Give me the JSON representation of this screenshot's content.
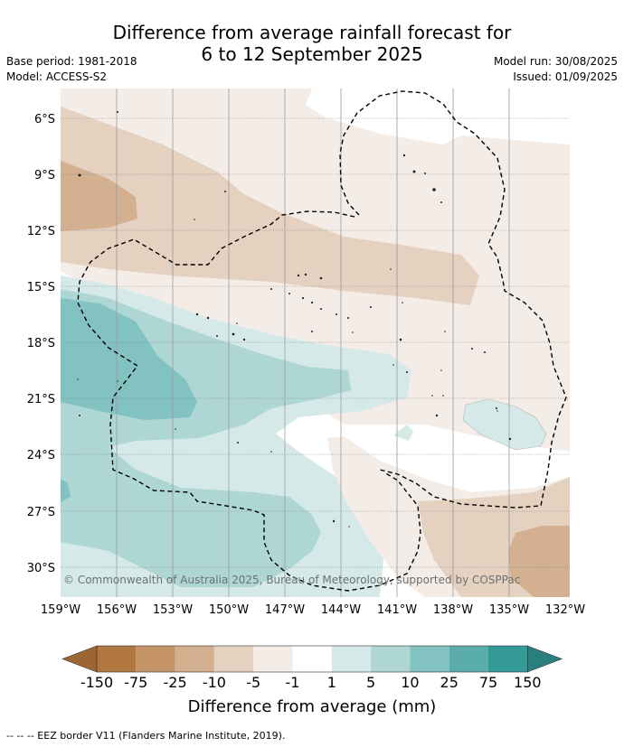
{
  "title": {
    "line1": "Difference from average rainfall forecast for",
    "line2": "6 to 12 September 2025"
  },
  "meta_left": {
    "base_period": "Base period: 1981-2018",
    "model": "Model: ACCESS-S2"
  },
  "meta_right": {
    "model_run": "Model run: 30/08/2025",
    "issued": "Issued: 01/09/2025"
  },
  "map": {
    "latitude_labels": [
      "6°S",
      "9°S",
      "12°S",
      "15°S",
      "18°S",
      "21°S",
      "24°S",
      "27°S",
      "30°S"
    ],
    "longitude_labels": [
      "159°W",
      "156°W",
      "153°W",
      "150°W",
      "147°W",
      "144°W",
      "141°W",
      "138°W",
      "135°W",
      "132°W"
    ],
    "copyright": "© Commonwealth of Australia 2025, Bureau of Meteorology, supported by COSPPac"
  },
  "colorbar": {
    "labels": [
      "-150",
      "-75",
      "-25",
      "-10",
      "-5",
      "-1",
      "1",
      "5",
      "10",
      "25",
      "75",
      "150"
    ],
    "colors": [
      "#9c6632",
      "#b07840",
      "#c49467",
      "#d3b090",
      "#e4d1c0",
      "#f4ece6",
      "#ffffff",
      "#d4e9e8",
      "#add6d5",
      "#82c2c1",
      "#5aadab",
      "#349a98",
      "#2a7f7c"
    ],
    "title": "Difference from average (mm)"
  },
  "footnote": "--  --  -- EEZ border V11 (Flanders Marine Institute, 2019)."
}
